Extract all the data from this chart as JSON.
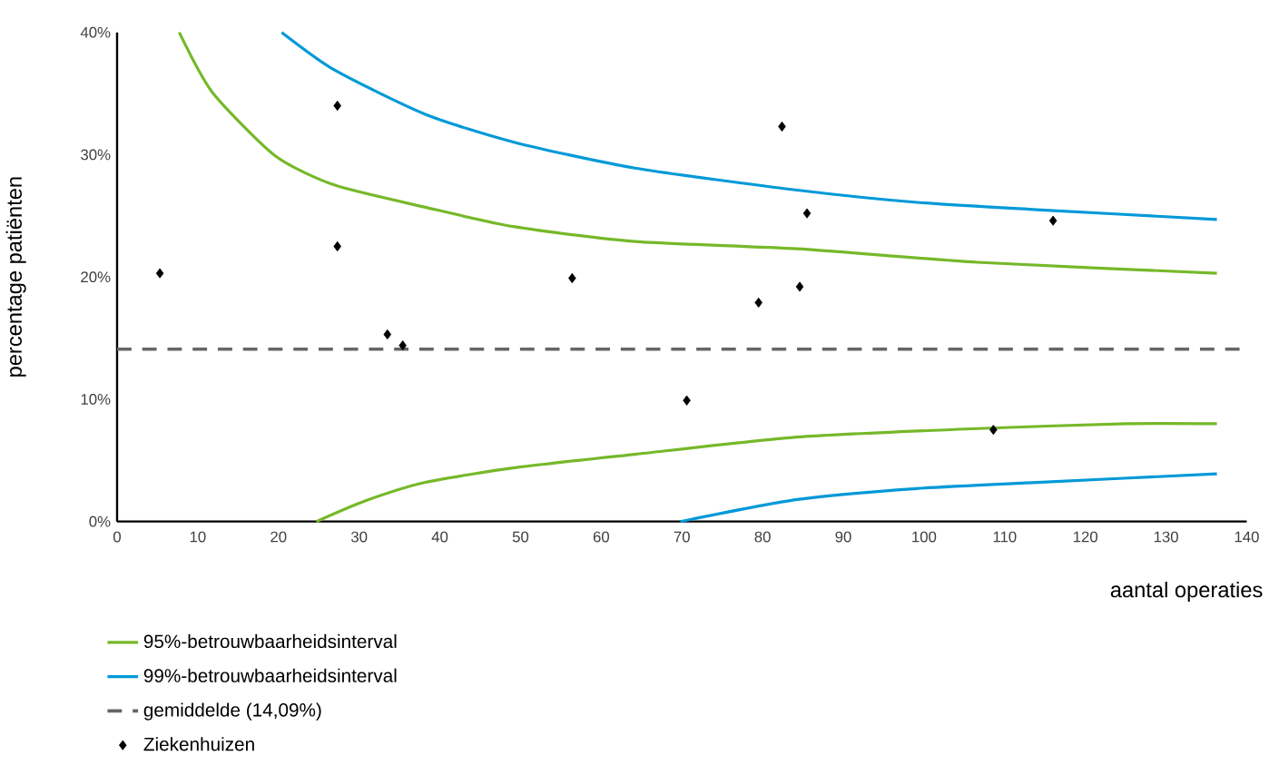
{
  "chart_data": {
    "type": "scatter",
    "xlabel": "aantal operaties",
    "ylabel": "percentage patiënten",
    "xlim": [
      0,
      140
    ],
    "ylim": [
      0,
      40
    ],
    "xticks": [
      0,
      10,
      20,
      30,
      40,
      50,
      60,
      70,
      80,
      90,
      100,
      110,
      120,
      130,
      140
    ],
    "yticks": [
      {
        "value": 0,
        "label": "0%"
      },
      {
        "value": 10,
        "label": "10%"
      },
      {
        "value": 20,
        "label": "20%"
      },
      {
        "value": 30,
        "label": "30%"
      },
      {
        "value": 40,
        "label": "40%"
      }
    ],
    "legend": "bottom",
    "ref_lines": [
      {
        "axis": "y",
        "value": 14.09,
        "label": "gemiddelde (14,09%)",
        "color": "#666666",
        "line_style": "dashed"
      }
    ],
    "series": [
      {
        "name": "95%-betrouwbaarheidsinterval",
        "type": "line",
        "color": "#76b82a",
        "x": [
          7.7,
          11.8,
          19.6,
          27.0,
          38.2,
          49.3,
          64.2,
          84.3,
          106.6,
          136.3
        ],
        "values": [
          40,
          35.1,
          29.9,
          27.5,
          25.7,
          24.1,
          22.9,
          22.3,
          21.2,
          20.3
        ]
      },
      {
        "name": "99%-betrouwbaarheidsinterval",
        "type": "line",
        "color": "#0099d8",
        "x": [
          20.4,
          27.0,
          38.2,
          49.3,
          64.2,
          84.3,
          99.1,
          114.0,
          136.3
        ],
        "values": [
          40,
          36.9,
          33.3,
          31.0,
          28.9,
          27.1,
          26.1,
          25.5,
          24.7
        ]
      },
      {
        "type": "line",
        "color": "#76b82a",
        "x": [
          24.7,
          30.8,
          38.2,
          49.3,
          64.2,
          84.3,
          106.6,
          125.1,
          136.3
        ],
        "values": [
          0,
          1.7,
          3.2,
          4.4,
          5.5,
          6.9,
          7.6,
          8.0,
          8.0
        ]
      },
      {
        "type": "line",
        "color": "#0099d8",
        "x": [
          69.8,
          84.3,
          99.1,
          114.0,
          136.3
        ],
        "values": [
          0,
          1.8,
          2.7,
          3.2,
          3.9
        ]
      },
      {
        "name": "Ziekenhuizen",
        "marker": "diamond",
        "color": "#000000",
        "x": [
          5.3,
          27.3,
          27.3,
          33.5,
          35.4,
          56.4,
          82.4,
          85.5,
          84.6,
          79.5,
          70.6,
          108.6,
          116.0
        ],
        "values": [
          20.3,
          34.0,
          22.5,
          15.3,
          14.4,
          19.9,
          32.3,
          25.2,
          19.2,
          17.9,
          9.9,
          7.5,
          24.6
        ]
      }
    ]
  }
}
